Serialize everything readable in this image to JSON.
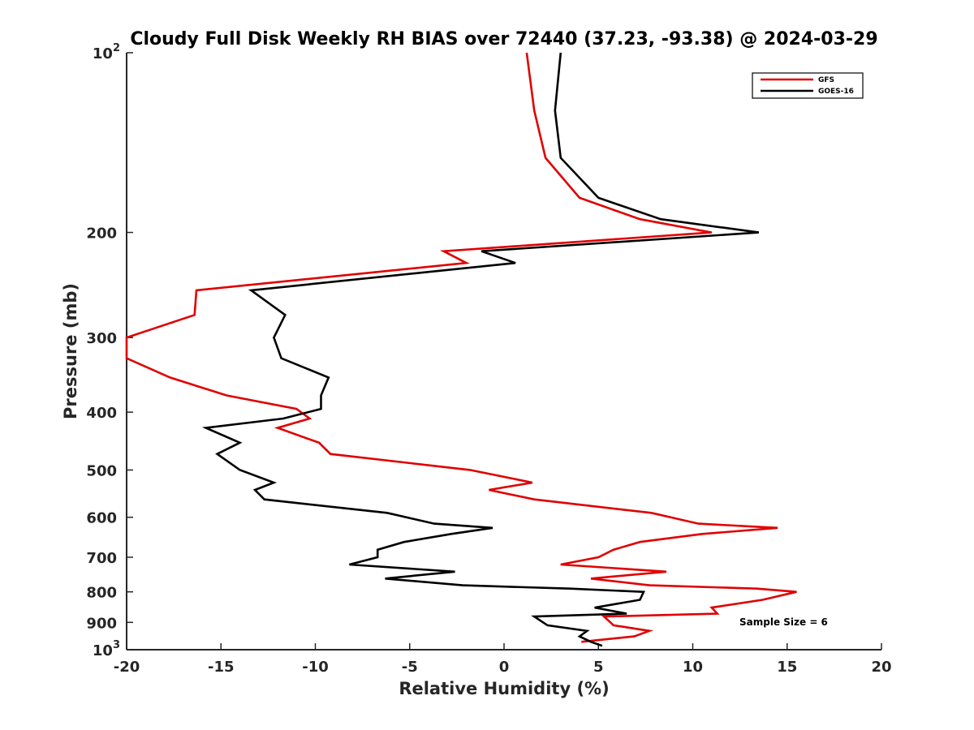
{
  "chart_data": {
    "type": "line",
    "title": "Cloudy Full Disk Weekly RH BIAS over 72440 (37.23, -93.38) @ 2024-03-29",
    "xlabel": "Relative Humidity (%)",
    "ylabel": "Pressure (mb)",
    "xlim": [
      -20,
      20
    ],
    "ylim": [
      100,
      1000
    ],
    "y_scale": "log",
    "y_reversed": true,
    "grid": false,
    "legend_position": "top-right",
    "x_ticks": [
      "-20",
      "-15",
      "-10",
      "-5",
      "0",
      "5",
      "10",
      "15",
      "20"
    ],
    "y_ticks": [
      {
        "value": 100,
        "base": "10",
        "exp": "2"
      },
      {
        "value": 200,
        "label": "200"
      },
      {
        "value": 300,
        "label": "300"
      },
      {
        "value": 400,
        "label": "400"
      },
      {
        "value": 500,
        "label": "500"
      },
      {
        "value": 600,
        "label": "600"
      },
      {
        "value": 700,
        "label": "700"
      },
      {
        "value": 800,
        "label": "800"
      },
      {
        "value": 900,
        "label": "900"
      },
      {
        "value": 1000,
        "base": "10",
        "exp": "3"
      }
    ],
    "series": [
      {
        "name": "GFS",
        "color": "#e00000",
        "points": [
          [
            1.2,
            100
          ],
          [
            1.6,
            125
          ],
          [
            2.2,
            150
          ],
          [
            4.0,
            175
          ],
          [
            7.2,
            190
          ],
          [
            11.0,
            200
          ],
          [
            -3.2,
            215
          ],
          [
            -2.0,
            225
          ],
          [
            -16.3,
            250
          ],
          [
            -16.4,
            275
          ],
          [
            -20.0,
            300
          ],
          [
            -20.0,
            325
          ],
          [
            -17.7,
            350
          ],
          [
            -14.7,
            375
          ],
          [
            -11.0,
            395
          ],
          [
            -10.3,
            410
          ],
          [
            -12.0,
            425
          ],
          [
            -9.8,
            450
          ],
          [
            -9.2,
            470
          ],
          [
            -1.8,
            500
          ],
          [
            1.5,
            525
          ],
          [
            -0.8,
            540
          ],
          [
            1.6,
            560
          ],
          [
            7.8,
            590
          ],
          [
            10.3,
            615
          ],
          [
            14.5,
            625
          ],
          [
            10.5,
            640
          ],
          [
            7.2,
            660
          ],
          [
            5.8,
            680
          ],
          [
            5.0,
            700
          ],
          [
            3.0,
            720
          ],
          [
            8.6,
            740
          ],
          [
            4.6,
            760
          ],
          [
            7.7,
            780
          ],
          [
            13.4,
            790
          ],
          [
            15.5,
            800
          ],
          [
            13.7,
            825
          ],
          [
            11.0,
            850
          ],
          [
            11.3,
            870
          ],
          [
            5.3,
            880
          ],
          [
            5.8,
            910
          ],
          [
            7.7,
            930
          ],
          [
            6.9,
            950
          ],
          [
            4.1,
            970
          ]
        ]
      },
      {
        "name": "GOES-16",
        "color": "#000000",
        "points": [
          [
            3.0,
            100
          ],
          [
            2.7,
            125
          ],
          [
            3.0,
            150
          ],
          [
            5.0,
            175
          ],
          [
            8.3,
            190
          ],
          [
            13.5,
            200
          ],
          [
            -1.2,
            215
          ],
          [
            0.6,
            225
          ],
          [
            -13.4,
            250
          ],
          [
            -11.6,
            275
          ],
          [
            -12.2,
            300
          ],
          [
            -11.8,
            325
          ],
          [
            -9.3,
            350
          ],
          [
            -9.7,
            375
          ],
          [
            -9.7,
            395
          ],
          [
            -11.7,
            410
          ],
          [
            -15.8,
            425
          ],
          [
            -14.0,
            450
          ],
          [
            -15.2,
            470
          ],
          [
            -14.0,
            500
          ],
          [
            -12.2,
            525
          ],
          [
            -13.2,
            540
          ],
          [
            -12.7,
            560
          ],
          [
            -6.2,
            590
          ],
          [
            -3.7,
            615
          ],
          [
            -0.6,
            625
          ],
          [
            -2.8,
            640
          ],
          [
            -5.3,
            660
          ],
          [
            -6.7,
            680
          ],
          [
            -6.7,
            700
          ],
          [
            -8.2,
            720
          ],
          [
            -2.6,
            740
          ],
          [
            -6.3,
            760
          ],
          [
            -2.2,
            780
          ],
          [
            3.5,
            790
          ],
          [
            7.4,
            800
          ],
          [
            7.2,
            825
          ],
          [
            4.8,
            850
          ],
          [
            6.5,
            870
          ],
          [
            1.6,
            880
          ],
          [
            2.3,
            910
          ],
          [
            4.4,
            930
          ],
          [
            4.0,
            950
          ],
          [
            4.6,
            970
          ],
          [
            5.2,
            985
          ]
        ]
      }
    ],
    "annotation": "Sample Size = 6"
  }
}
